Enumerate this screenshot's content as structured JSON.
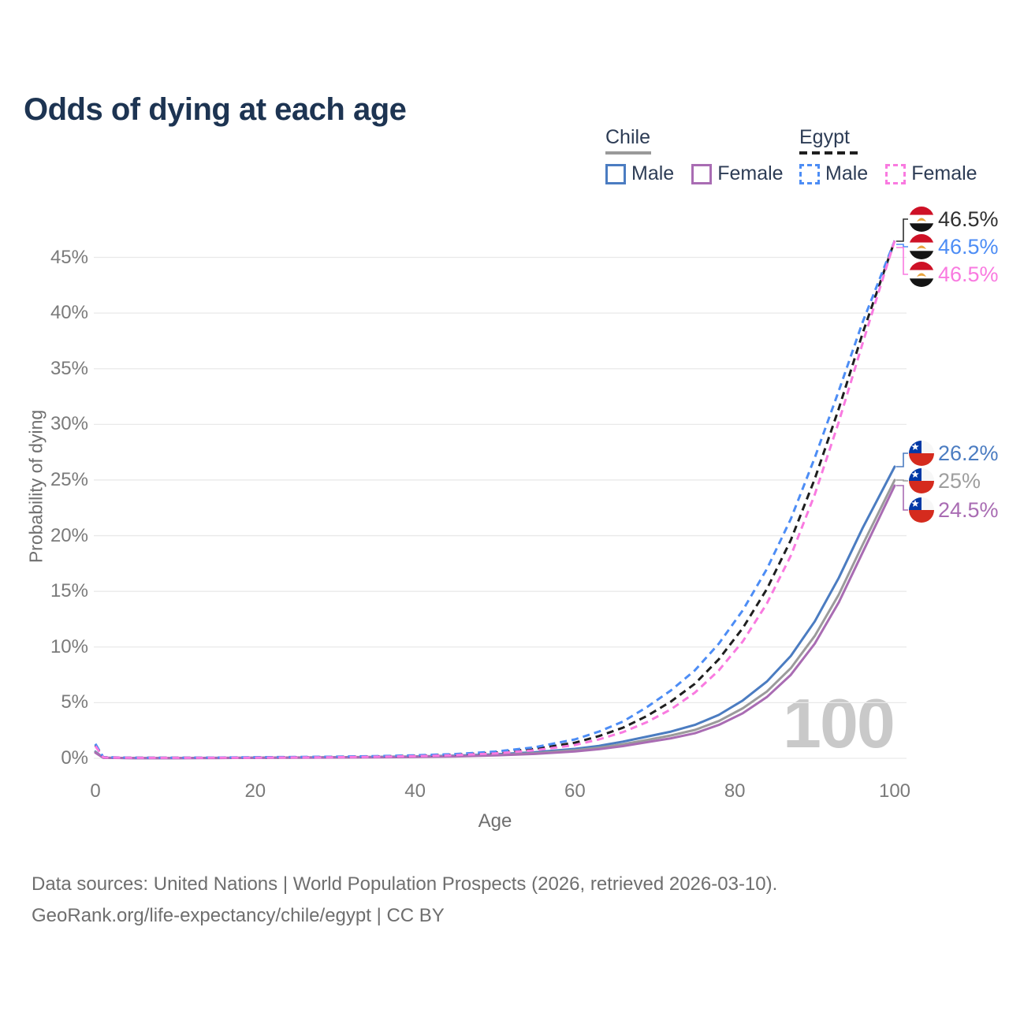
{
  "header": {
    "title": "Odds of dying at each age"
  },
  "legend": {
    "groups": [
      {
        "label": "Chile",
        "line_style": "solid",
        "items": [
          {
            "label": "Male"
          },
          {
            "label": "Female"
          }
        ]
      },
      {
        "label": "Egypt",
        "line_style": "dashed",
        "items": [
          {
            "label": "Male"
          },
          {
            "label": "Female"
          }
        ]
      }
    ]
  },
  "chart_data": {
    "type": "line",
    "title": "Odds of dying at each age",
    "xlabel": "Age",
    "ylabel": "Probability of dying",
    "x_ticks": [
      0,
      20,
      40,
      60,
      80,
      100
    ],
    "y_tick_labels": [
      "0%",
      "5%",
      "10%",
      "15%",
      "20%",
      "25%",
      "30%",
      "35%",
      "40%",
      "45%"
    ],
    "xlim": [
      0,
      100
    ],
    "ylim_percent": [
      0,
      47.5
    ],
    "grid": "horizontal",
    "legend_position": "top-right",
    "watermark": "100",
    "ages": [
      0,
      1,
      5,
      10,
      15,
      20,
      25,
      30,
      35,
      40,
      45,
      50,
      55,
      60,
      63,
      66,
      69,
      72,
      75,
      78,
      81,
      84,
      87,
      90,
      93,
      96,
      100
    ],
    "series": [
      {
        "name": "Chile Male",
        "country": "Chile",
        "sex": "male",
        "line_style": "solid",
        "color": "#4b7cc1",
        "end_label": "26.2%",
        "values": [
          0.6,
          0.05,
          0.02,
          0.02,
          0.04,
          0.06,
          0.08,
          0.1,
          0.13,
          0.17,
          0.24,
          0.36,
          0.55,
          0.85,
          1.12,
          1.5,
          1.95,
          2.4,
          3.0,
          3.9,
          5.2,
          6.9,
          9.2,
          12.3,
          16.2,
          20.7,
          26.2
        ]
      },
      {
        "name": "Chile Total",
        "country": "Chile",
        "sex": "total",
        "line_style": "solid",
        "color": "#9b9b9b",
        "end_label": "25%",
        "values": [
          0.55,
          0.05,
          0.02,
          0.02,
          0.03,
          0.05,
          0.07,
          0.09,
          0.11,
          0.15,
          0.2,
          0.3,
          0.46,
          0.72,
          0.95,
          1.27,
          1.65,
          2.05,
          2.55,
          3.35,
          4.5,
          6.0,
          8.1,
          11.0,
          14.7,
          19.2,
          25.0
        ]
      },
      {
        "name": "Chile Female",
        "country": "Chile",
        "sex": "female",
        "line_style": "solid",
        "color": "#a96cb3",
        "end_label": "24.5%",
        "values": [
          0.5,
          0.04,
          0.02,
          0.02,
          0.03,
          0.04,
          0.05,
          0.07,
          0.09,
          0.12,
          0.17,
          0.26,
          0.4,
          0.62,
          0.82,
          1.1,
          1.45,
          1.8,
          2.25,
          3.0,
          4.05,
          5.5,
          7.5,
          10.3,
          14.0,
          18.5,
          24.5
        ]
      },
      {
        "name": "Egypt Total",
        "country": "Egypt",
        "sex": "total",
        "line_style": "dashed",
        "color": "#1f1f1f",
        "end_label": "46.5%",
        "values": [
          1.2,
          0.09,
          0.05,
          0.05,
          0.06,
          0.08,
          0.1,
          0.13,
          0.17,
          0.23,
          0.33,
          0.52,
          0.85,
          1.4,
          2.0,
          2.75,
          3.8,
          5.1,
          6.7,
          8.9,
          11.7,
          15.2,
          19.6,
          25.1,
          31.4,
          38.2,
          46.5
        ]
      },
      {
        "name": "Egypt Male",
        "country": "Egypt",
        "sex": "male",
        "line_style": "dashed",
        "color": "#4d8df5",
        "end_label": "46.5%",
        "values": [
          1.3,
          0.1,
          0.05,
          0.05,
          0.07,
          0.1,
          0.12,
          0.15,
          0.2,
          0.27,
          0.38,
          0.6,
          1.0,
          1.7,
          2.4,
          3.3,
          4.6,
          6.1,
          7.9,
          10.3,
          13.3,
          17.0,
          21.5,
          27.0,
          33.0,
          39.2,
          46.5
        ]
      },
      {
        "name": "Egypt Female",
        "country": "Egypt",
        "sex": "female",
        "line_style": "dashed",
        "color": "#f97ae0",
        "end_label": "46.5%",
        "values": [
          1.1,
          0.08,
          0.04,
          0.04,
          0.05,
          0.06,
          0.08,
          0.1,
          0.14,
          0.19,
          0.28,
          0.44,
          0.72,
          1.2,
          1.7,
          2.35,
          3.25,
          4.4,
          5.9,
          7.9,
          10.5,
          13.9,
          18.2,
          23.7,
          30.2,
          37.3,
          46.5
        ]
      }
    ]
  },
  "annotations": [
    {
      "group": "Egypt",
      "flag": "egypt-flag",
      "label": "46.5%",
      "color": "#2f2f2f"
    },
    {
      "group": "Egypt",
      "flag": "egypt-flag",
      "label": "46.5%",
      "color": "#4d8df5"
    },
    {
      "group": "Egypt",
      "flag": "egypt-flag",
      "label": "46.5%",
      "color": "#f97ae0"
    },
    {
      "group": "Chile",
      "flag": "chile-flag",
      "label": "26.2%",
      "color": "#4b7cc1"
    },
    {
      "group": "Chile",
      "flag": "chile-flag",
      "label": "25%",
      "color": "#9e9e9e"
    },
    {
      "group": "Chile",
      "flag": "chile-flag",
      "label": "24.5%",
      "color": "#a96cb3"
    }
  ],
  "colors": {
    "title_text": "#1d3452",
    "legend_text": "#2d3c55",
    "axis_text": "#7a7a7a",
    "gridline": "#e9e9e9",
    "watermark": "#c9c9c9",
    "footer_text": "#6e6e6e",
    "chile_underline": "#9a9a9a",
    "egypt_underline": "#1f1f1f",
    "egypt_flag_red": "#ce1126",
    "egypt_flag_black": "#141414",
    "egypt_flag_gold": "#e8a33d",
    "chile_flag_red": "#d52b1e",
    "chile_flag_blue": "#0039a6"
  },
  "footer": {
    "line1": "Data sources: United Nations | World Population Prospects (2026, retrieved 2026-03-10).",
    "line2": "GeoRank.org/life-expectancy/chile/egypt | CC BY"
  }
}
